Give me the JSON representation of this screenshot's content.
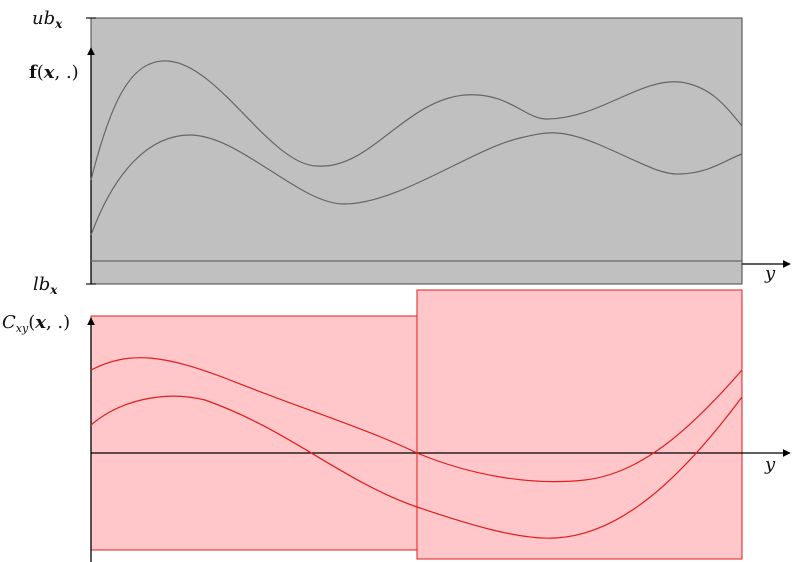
{
  "top_panel": {
    "ub_label": "ub_x",
    "lb_label": "lb_x",
    "f_label": "f(x, .)",
    "y_label": "y",
    "fill_color": "#c0c0c0",
    "stroke_color": "#666666"
  },
  "bottom_panel": {
    "c_label": "C_xy(x, .)",
    "y_label": "y",
    "fill_color": "#ffc7c9",
    "stroke_color": "#e11d1d"
  },
  "colors": {
    "axis": "#000000",
    "top_curve": "#666666",
    "bottom_curve": "#e11d1d"
  }
}
